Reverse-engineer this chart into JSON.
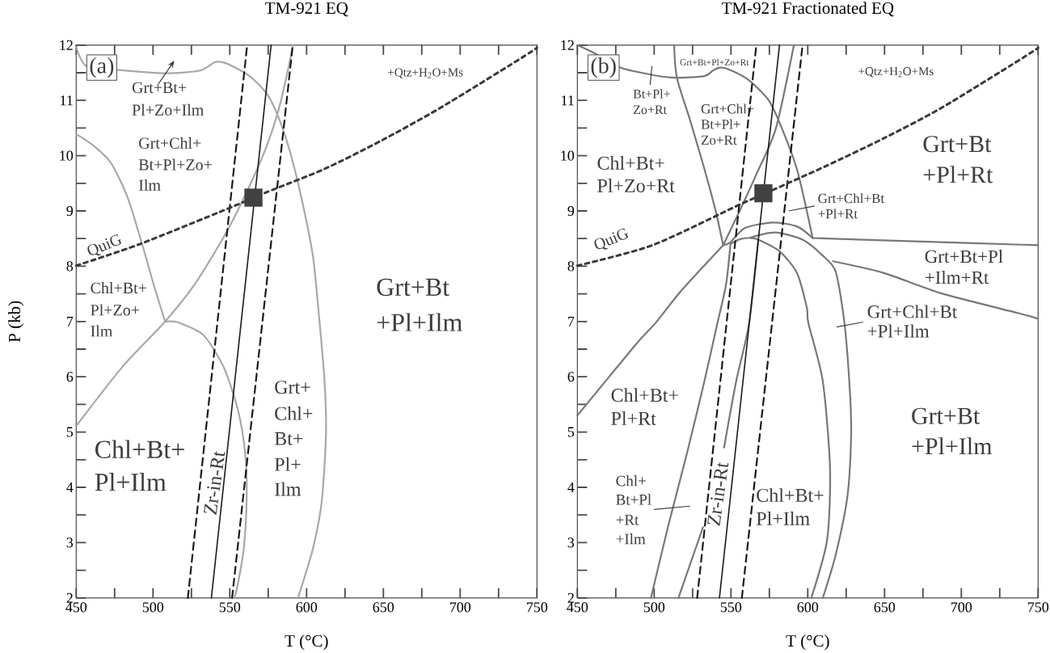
{
  "chart_data": [
    {
      "type": "line",
      "title": "TM-921 EQ",
      "xlabel": "T (°C)",
      "ylabel": "P (kb)",
      "xlim": [
        450,
        750
      ],
      "ylim": [
        2,
        12
      ],
      "xticks": [
        450,
        {
          "value": 475,
          "label": null
        },
        500,
        {
          "value": 525,
          "label": null
        },
        550,
        {
          "value": 575,
          "label": null
        },
        600,
        {
          "value": 625,
          "label": null
        },
        650,
        {
          "value": 675,
          "label": null
        },
        700,
        {
          "value": 725,
          "label": null
        },
        750
      ],
      "yticks": [
        2,
        {
          "value": 2.5,
          "label": null
        },
        3,
        {
          "value": 3.5,
          "label": null
        },
        4,
        {
          "value": 4.5,
          "label": null
        },
        5,
        {
          "value": 5.5,
          "label": null
        },
        6,
        {
          "value": 6.5,
          "label": null
        },
        7,
        {
          "value": 7.5,
          "label": null
        },
        8,
        {
          "value": 8.5,
          "label": null
        },
        9,
        {
          "value": 9.5,
          "label": null
        },
        10,
        {
          "value": 10.5,
          "label": null
        },
        11,
        {
          "value": 11.5,
          "label": null
        },
        12
      ],
      "series": [
        {
          "type": "line",
          "color": "#a7a8aa",
          "line_style": "solid",
          "x": [
            450,
            456.6,
            478.2,
            508.3,
            530.8,
            540.2,
            547.7,
            562.8,
            574.1,
            581.6,
            589.1,
            596.6,
            604.1,
            607.9,
            611.7,
            612.6,
            609.8,
            604.1,
            594.4
          ],
          "values": [
            11.96,
            11.62,
            11.55,
            11.49,
            11.54,
            11.69,
            11.67,
            11.44,
            11.12,
            10.7,
            10.08,
            9.24,
            8.19,
            7.15,
            5.92,
            4.93,
            3.73,
            2.89,
            2.0
          ]
        },
        {
          "type": "line",
          "color": "#a7a8aa",
          "line_style": "solid",
          "x": [
            450,
            461.3,
            472.6,
            483.5,
            492.9,
            500.4,
            507.9
          ],
          "values": [
            10.39,
            10.18,
            9.87,
            9.24,
            8.4,
            7.67,
            7.0
          ]
        },
        {
          "type": "line",
          "color": "#a7a8aa",
          "line_style": "solid",
          "x": [
            507.9,
            513.9,
            517.7,
            532.7,
            545.9,
            555.3,
            560.0,
            561.0,
            559.1,
            555.3,
            553.0
          ],
          "values": [
            7.0,
            7.0,
            6.97,
            6.76,
            6.18,
            5.4,
            4.62,
            3.83,
            2.89,
            2.26,
            2.0
          ]
        },
        {
          "type": "line",
          "color": "#a7a8aa",
          "line_style": "solid",
          "x": [
            450,
            480.1,
            507.9,
            527.1,
            547.7,
            562.8,
            574.1,
            581.6,
            588.2,
            591.0
          ],
          "values": [
            5.11,
            6.18,
            7.0,
            7.67,
            8.61,
            9.45,
            10.18,
            10.81,
            11.59,
            12.0
          ]
        },
        {
          "type": "line",
          "color": "#1a1a1a",
          "line_style": "dashed",
          "x": [
            522.7,
            561.3
          ],
          "values": [
            2,
            12
          ]
        },
        {
          "type": "line",
          "color": "#1a1a1a",
          "line_style": "solid",
          "x": [
            538.0,
            576.9
          ],
          "values": [
            2,
            12
          ]
        },
        {
          "type": "line",
          "color": "#1a1a1a",
          "line_style": "dashed",
          "x": [
            551.5,
            591.0
          ],
          "values": [
            2,
            12
          ]
        },
        {
          "type": "line",
          "color": "#3a3a3c",
          "line_style": "dotted",
          "x": [
            450,
            491.4,
            547.7,
            574.1,
            611.7,
            649.2,
            686.8,
            737.2,
            750
          ],
          "values": [
            8.01,
            8.4,
            9.03,
            9.34,
            9.76,
            10.28,
            10.86,
            11.72,
            11.95
          ]
        },
        {
          "type": "scatter",
          "color": "#414143",
          "marker": "square",
          "x": [
            565.4
          ],
          "values": [
            9.24
          ]
        }
      ],
      "annotations": [
        "(a)",
        "+Qtz+H$_{2}$O+Ms",
        "Grt+Bt+",
        "Pl+Zo+Ilm",
        "Grt+Chl+",
        "Bt+Pl+Zo+",
        "Ilm",
        "QuiG",
        "Chl+Bt+",
        "Pl+Zo+",
        "Ilm",
        "Grt+Bt",
        "+Pl+Ilm",
        "Chl+Bt+",
        "Pl+Ilm",
        "Zr-in-Rt",
        "Grt+",
        "Chl+",
        "Bt+",
        "Pl+",
        "Ilm"
      ]
    },
    {
      "type": "line",
      "title": "TM-921 Fractionated EQ",
      "xlabel": "T (°C)",
      "xlim": [
        450,
        750
      ],
      "ylim": [
        2,
        12
      ],
      "xticks": [
        450,
        {
          "value": 475,
          "label": null
        },
        500,
        {
          "value": 525,
          "label": null
        },
        550,
        {
          "value": 575,
          "label": null
        },
        600,
        {
          "value": 625,
          "label": null
        },
        650,
        {
          "value": 675,
          "label": null
        },
        700,
        {
          "value": 725,
          "label": null
        },
        750
      ],
      "yticks": [
        2,
        {
          "value": 2.5,
          "label": null
        },
        3,
        {
          "value": 3.5,
          "label": null
        },
        4,
        {
          "value": 4.5,
          "label": null
        },
        5,
        {
          "value": 5.5,
          "label": null
        },
        6,
        {
          "value": 6.5,
          "label": null
        },
        7,
        {
          "value": 7.5,
          "label": null
        },
        8,
        {
          "value": 8.5,
          "label": null
        },
        9,
        {
          "value": 9.5,
          "label": null
        },
        10,
        {
          "value": 10.5,
          "label": null
        },
        11,
        {
          "value": 11.5,
          "label": null
        },
        12
      ],
      "series": [
        {
          "type": "line",
          "color": "#77787b",
          "line_style": "solid",
          "x": [
            450,
            461.3,
            478.2,
            498.9,
            513.9,
            532.7,
            538.3,
            542.1,
            547.7,
            560.9,
            574.1,
            581.6,
            592.9,
            603.2
          ],
          "values": [
            12,
            11.85,
            11.59,
            11.46,
            11.41,
            11.44,
            11.54,
            11.59,
            11.57,
            11.38,
            11.02,
            10.6,
            9.76,
            8.51
          ]
        },
        {
          "type": "line",
          "color": "#77787b",
          "line_style": "solid",
          "x": [
            603.2,
            670,
            750
          ],
          "values": [
            8.51,
            8.45,
            8.38
          ]
        },
        {
          "type": "line",
          "color": "#77787b",
          "line_style": "solid",
          "x": [
            616.4,
            649.2,
            686.8,
            737.2,
            750
          ],
          "values": [
            8.09,
            7.88,
            7.51,
            7.15,
            7.05
          ]
        },
        {
          "type": "line",
          "color": "#77787b",
          "line_style": "solid",
          "x": [
            513.0,
            514.8,
            523.3,
            532.7,
            540.2,
            544.9
          ],
          "values": [
            12,
            11.41,
            10.65,
            9.76,
            8.98,
            8.38
          ]
        },
        {
          "type": "line",
          "color": "#77787b",
          "line_style": "solid",
          "x": [
            544.9,
            555.3,
            566.5,
            579.2,
            591.0
          ],
          "values": [
            8.38,
            8.98,
            9.66,
            10.49,
            12
          ]
        },
        {
          "type": "line",
          "color": "#77787b",
          "line_style": "solid",
          "x": [
            450,
            487.6,
            500.8,
            517.7,
            544.9
          ],
          "values": [
            5.3,
            6.57,
            6.97,
            7.56,
            8.38
          ]
        },
        {
          "type": "line",
          "color": "#77787b",
          "line_style": "solid",
          "x": [
            497.9,
            509.2,
            521.4,
            532.7,
            541.2,
            546.8,
            549.6
          ],
          "values": [
            2.0,
            3.31,
            4.62,
            5.92,
            6.97,
            7.67,
            8.38
          ]
        },
        {
          "type": "line",
          "color": "#77787b",
          "line_style": "solid",
          "x": [
            544.9,
            549.6,
            559.0,
            576.9,
            592.9,
            603.2
          ],
          "values": [
            8.38,
            8.43,
            8.69,
            8.79,
            8.72,
            8.51
          ]
        },
        {
          "type": "line",
          "color": "#77787b",
          "line_style": "solid",
          "x": [
            562.8,
            578.8,
            596.6,
            609.8,
            618.2,
            623.9,
            627.6,
            628.2,
            625.8,
            618.2,
            609.8
          ],
          "values": [
            8.52,
            8.61,
            8.48,
            8.19,
            7.9,
            6.97,
            5.66,
            4.88,
            3.83,
            2.78,
            2.0
          ]
        },
        {
          "type": "line",
          "color": "#77787b",
          "line_style": "solid",
          "x": [
            549.6,
            556.0,
            562.8,
            567.8,
            581.6,
            592.9,
            599.4,
            600.4,
            609.8,
            614.5,
            612.6,
            602.3
          ],
          "values": [
            8.4,
            8.49,
            8.51,
            8.48,
            8.27,
            7.88,
            7.25,
            6.97,
            5.92,
            4.35,
            3.05,
            2.0
          ]
        },
        {
          "type": "line",
          "color": "#77787b",
          "line_style": "solid",
          "x": [
            545.5,
            553.4,
            561.8,
            567.8
          ],
          "values": [
            4.72,
            5.92,
            6.97,
            8.48
          ]
        },
        {
          "type": "line",
          "color": "#77787b",
          "line_style": "solid",
          "x": [
            515.8,
            531.8
          ],
          "values": [
            2.0,
            3.28
          ]
        },
        {
          "type": "line",
          "color": "#1a1a1a",
          "line_style": "dashed",
          "x": [
            528.0,
            566.5
          ],
          "values": [
            2,
            12
          ]
        },
        {
          "type": "line",
          "color": "#1a1a1a",
          "line_style": "solid",
          "x": [
            542.5,
            581.6
          ],
          "values": [
            2,
            12
          ]
        },
        {
          "type": "line",
          "color": "#1a1a1a",
          "line_style": "dashed",
          "x": [
            557.1,
            596.6
          ],
          "values": [
            2,
            12
          ]
        },
        {
          "type": "line",
          "color": "#3a3a3c",
          "line_style": "dotted",
          "x": [
            450,
            498.9,
            555.3,
            574.1,
            611.7,
            649.2,
            686.8,
            737.2,
            750
          ],
          "values": [
            8.01,
            8.38,
            9.11,
            9.34,
            9.81,
            10.31,
            10.86,
            11.72,
            11.95
          ]
        },
        {
          "type": "scatter",
          "color": "#414143",
          "marker": "square",
          "x": [
            571.1
          ],
          "values": [
            9.32
          ]
        }
      ],
      "annotations": [
        "(b)",
        "Grt+Bt+Pl+Zo+Rt",
        "+Qtz+H$_{2}$O+Ms",
        "Bt+Pl+",
        "Zo+Rt",
        "Grt+Chl+",
        "Bt+Pl+",
        "Zo+Rt",
        "Chl+Bt+",
        "Pl+Zo+Rt",
        "QuiG",
        "Grt+Bt",
        "+Pl+Rt",
        "Grt+Chl+Bt",
        "+Pl+Rt",
        "Grt+Bt+Pl",
        "+Ilm+Rt",
        "Grt+Chl+Bt",
        "+Pl+Ilm",
        "Chl+Bt+",
        "Pl+Rt",
        "Chl+",
        "Bt+Pl",
        "+Rt",
        "+Ilm",
        "Zr-in-Rt",
        "Chl+Bt+",
        "Pl+Ilm",
        "Grt+Bt",
        "+Pl+Ilm"
      ]
    }
  ]
}
